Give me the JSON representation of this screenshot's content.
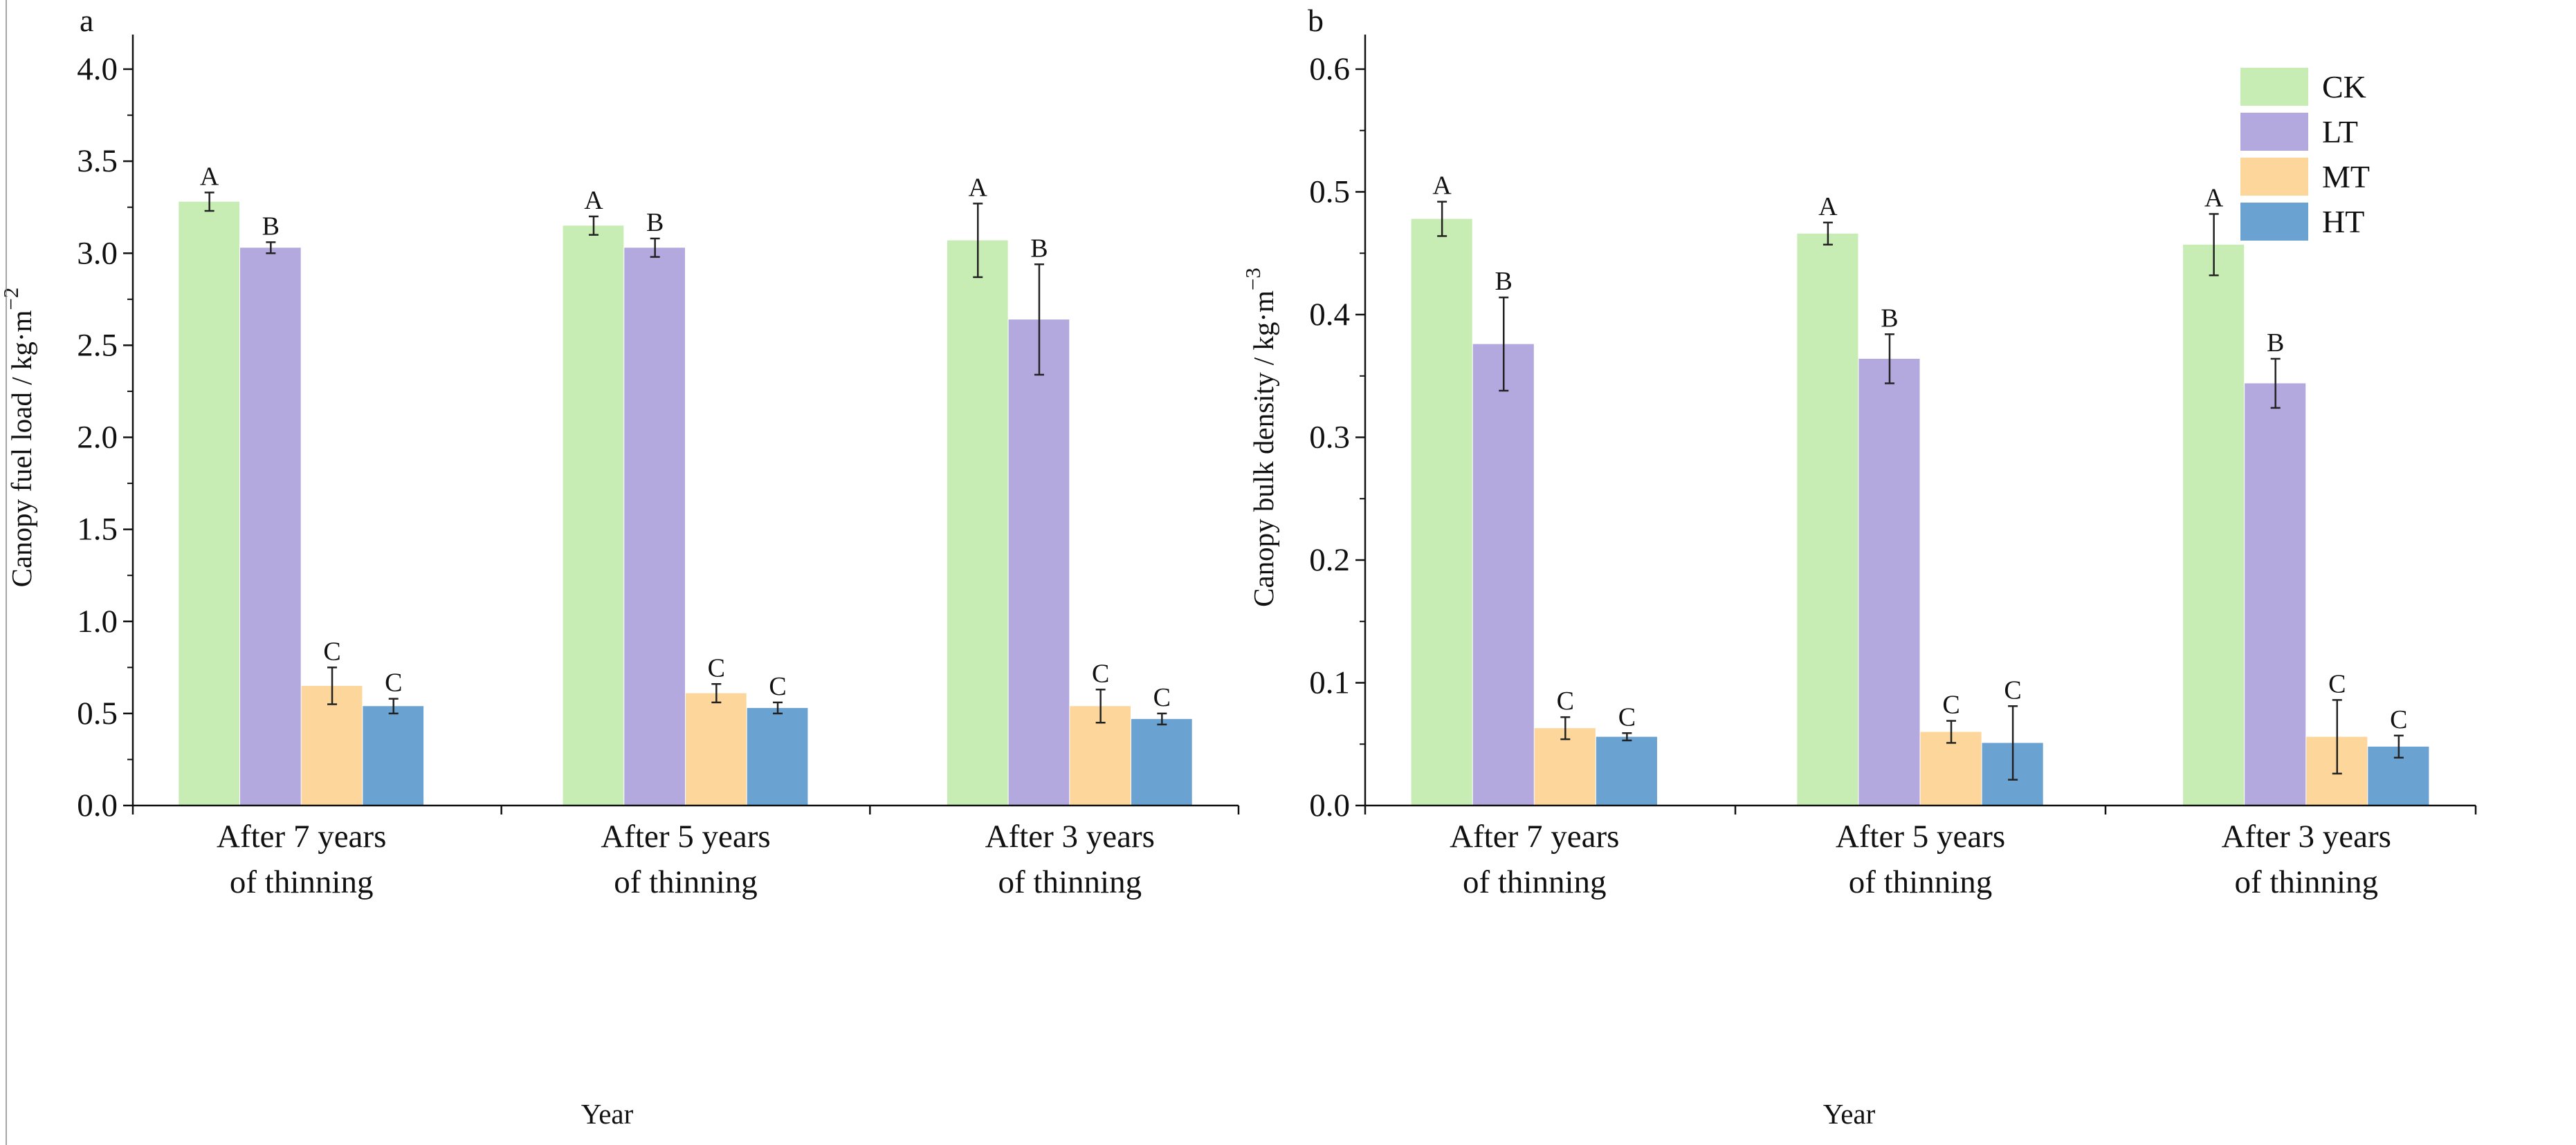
{
  "colors": {
    "CK": "#c8edb4",
    "LT": "#b4a9de",
    "MT": "#fcd69a",
    "HT": "#6aa2d2",
    "axis": "#111111",
    "error": "#222222"
  },
  "legend": {
    "entries": [
      "CK",
      "LT",
      "MT",
      "HT"
    ]
  },
  "chart_data": [
    {
      "type": "bar",
      "panel_label": "a",
      "title": "",
      "xlabel": "Year",
      "ylabel": "Canopy fuel load / kg·m",
      "ylabel_sup": "−2",
      "ylim": [
        0,
        4.0
      ],
      "yticks": [
        "0.0",
        "0.5",
        "1.0",
        "1.5",
        "2.0",
        "2.5",
        "3.0",
        "3.5",
        "4.0"
      ],
      "categories": [
        [
          "After 7 years",
          "of thinning"
        ],
        [
          "After 5 years",
          "of thinning"
        ],
        [
          "After 3 years",
          "of thinning"
        ]
      ],
      "series": [
        {
          "name": "CK",
          "values": [
            3.28,
            3.15,
            3.07
          ],
          "errors": [
            0.05,
            0.05,
            0.2
          ],
          "letters": [
            "A",
            "A",
            "A"
          ]
        },
        {
          "name": "LT",
          "values": [
            3.03,
            3.03,
            2.64
          ],
          "errors": [
            0.03,
            0.05,
            0.3
          ],
          "letters": [
            "B",
            "B",
            "B"
          ]
        },
        {
          "name": "MT",
          "values": [
            0.65,
            0.61,
            0.54
          ],
          "errors": [
            0.1,
            0.05,
            0.09
          ],
          "letters": [
            "C",
            "C",
            "C"
          ]
        },
        {
          "name": "HT",
          "values": [
            0.54,
            0.53,
            0.47
          ],
          "errors": [
            0.04,
            0.03,
            0.03
          ],
          "letters": [
            "C",
            "C",
            "C"
          ]
        }
      ]
    },
    {
      "type": "bar",
      "panel_label": "b",
      "title": "",
      "xlabel": "Year",
      "ylabel": "Canopy bulk density / kg·m",
      "ylabel_sup": "−3",
      "ylim": [
        0,
        0.6
      ],
      "yticks": [
        "0.0",
        "0.1",
        "0.2",
        "0.3",
        "0.4",
        "0.5",
        "0.6"
      ],
      "categories": [
        [
          "After 7 years",
          "of thinning"
        ],
        [
          "After 5 years",
          "of thinning"
        ],
        [
          "After 3 years",
          "of thinning"
        ]
      ],
      "series": [
        {
          "name": "CK",
          "values": [
            0.478,
            0.466,
            0.457
          ],
          "errors": [
            0.014,
            0.009,
            0.025
          ],
          "letters": [
            "A",
            "A",
            "A"
          ]
        },
        {
          "name": "LT",
          "values": [
            0.376,
            0.364,
            0.344
          ],
          "errors": [
            0.038,
            0.02,
            0.02
          ],
          "letters": [
            "B",
            "B",
            "B"
          ]
        },
        {
          "name": "MT",
          "values": [
            0.063,
            0.06,
            0.056
          ],
          "errors": [
            0.009,
            0.009,
            0.03
          ],
          "letters": [
            "C",
            "C",
            "C"
          ]
        },
        {
          "name": "HT",
          "values": [
            0.056,
            0.051,
            0.048
          ],
          "errors": [
            0.003,
            0.03,
            0.009
          ],
          "letters": [
            "C",
            "C",
            "C"
          ]
        }
      ]
    }
  ]
}
